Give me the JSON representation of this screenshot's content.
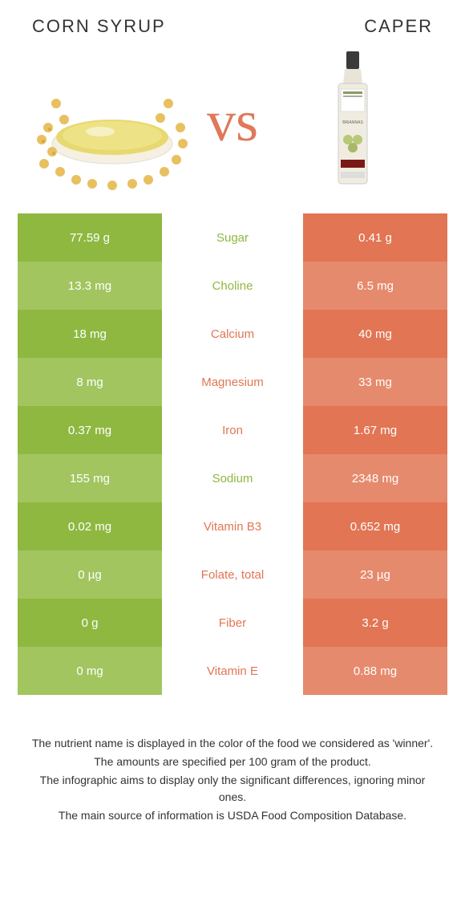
{
  "header": {
    "left_title": "CORN SYRUP",
    "right_title": "CAPER",
    "vs": "vs"
  },
  "colors": {
    "left_primary": "#8fb840",
    "left_alt": "#a2c560",
    "right_primary": "#e27554",
    "right_alt": "#e68a6d"
  },
  "rows": [
    {
      "left": "77.59 g",
      "label": "Sugar",
      "right": "0.41 g",
      "winner": "left"
    },
    {
      "left": "13.3 mg",
      "label": "Choline",
      "right": "6.5 mg",
      "winner": "left"
    },
    {
      "left": "18 mg",
      "label": "Calcium",
      "right": "40 mg",
      "winner": "right"
    },
    {
      "left": "8 mg",
      "label": "Magnesium",
      "right": "33 mg",
      "winner": "right"
    },
    {
      "left": "0.37 mg",
      "label": "Iron",
      "right": "1.67 mg",
      "winner": "right"
    },
    {
      "left": "155 mg",
      "label": "Sodium",
      "right": "2348 mg",
      "winner": "left"
    },
    {
      "left": "0.02 mg",
      "label": "Vitamin B3",
      "right": "0.652 mg",
      "winner": "right"
    },
    {
      "left": "0 µg",
      "label": "Folate, total",
      "right": "23 µg",
      "winner": "right"
    },
    {
      "left": "0 g",
      "label": "Fiber",
      "right": "3.2 g",
      "winner": "right"
    },
    {
      "left": "0 mg",
      "label": "Vitamin E",
      "right": "0.88 mg",
      "winner": "right"
    }
  ],
  "footer": {
    "l1": "The nutrient name is displayed in the color of the food we considered as 'winner'.",
    "l2": "The amounts are specified per 100 gram of the product.",
    "l3": "The infographic aims to display only the significant differences, ignoring minor ones.",
    "l4": "The main source of information is USDA Food Composition Database."
  }
}
